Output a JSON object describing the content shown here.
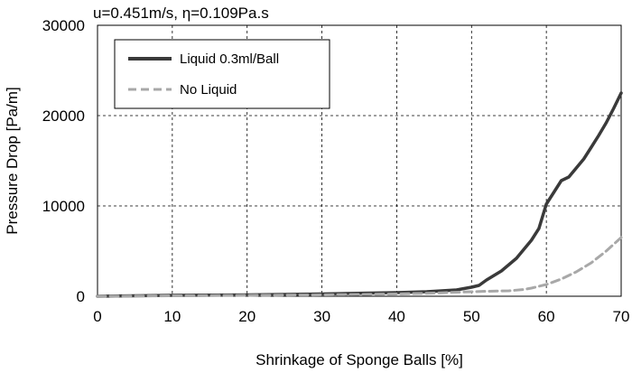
{
  "chart_data": {
    "type": "line",
    "subtitle": "u=0.451m/s, η=0.109Pa.s",
    "xlabel": "Shrinkage of Sponge Balls [%]",
    "ylabel": "Pressure Drop [Pa/m]",
    "xlim": [
      0,
      70
    ],
    "ylim": [
      0,
      30000
    ],
    "xticks": [
      0,
      10,
      20,
      30,
      40,
      50,
      60,
      70
    ],
    "yticks": [
      0,
      10000,
      20000,
      30000
    ],
    "grid": true,
    "legend_position": "top-left",
    "series": [
      {
        "name": "Liquid 0.3ml/Ball",
        "color": "#3a3a3a",
        "style": "solid",
        "x": [
          0,
          10,
          20,
          30,
          40,
          44,
          48,
          50,
          51,
          52,
          54,
          56,
          58,
          59,
          60,
          61,
          62,
          63,
          64,
          65,
          66,
          67,
          68,
          69,
          70
        ],
        "y": [
          0,
          100,
          150,
          250,
          400,
          500,
          700,
          1000,
          1200,
          1800,
          2800,
          4200,
          6200,
          7500,
          10200,
          11500,
          12800,
          13200,
          14200,
          15200,
          16500,
          17800,
          19200,
          20800,
          22500
        ]
      },
      {
        "name": "No Liquid",
        "color": "#a8a8a8",
        "style": "dashed",
        "x": [
          0,
          10,
          20,
          30,
          40,
          45,
          50,
          52,
          55,
          57,
          58,
          60,
          62,
          64,
          66,
          68,
          70
        ],
        "y": [
          0,
          50,
          100,
          150,
          250,
          350,
          500,
          550,
          600,
          750,
          900,
          1300,
          1900,
          2700,
          3700,
          5000,
          6500
        ]
      }
    ]
  }
}
